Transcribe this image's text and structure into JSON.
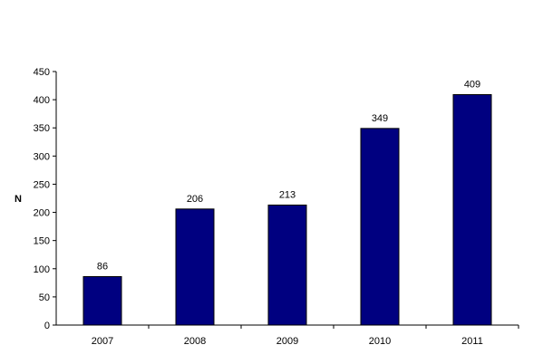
{
  "chart_data": {
    "type": "bar",
    "categories": [
      "2007",
      "2008",
      "2009",
      "2010",
      "2011"
    ],
    "values": [
      86,
      206,
      213,
      349,
      409
    ],
    "data_labels": [
      "86",
      "206",
      "213",
      "349",
      "409"
    ],
    "title": "",
    "xlabel": "",
    "ylabel": "N",
    "ylim": [
      0,
      450
    ],
    "yticks": [
      "0",
      "50",
      "100",
      "150",
      "200",
      "250",
      "300",
      "350",
      "400",
      "450"
    ],
    "grid": false,
    "legend": "none",
    "bar_color": "#000080"
  }
}
